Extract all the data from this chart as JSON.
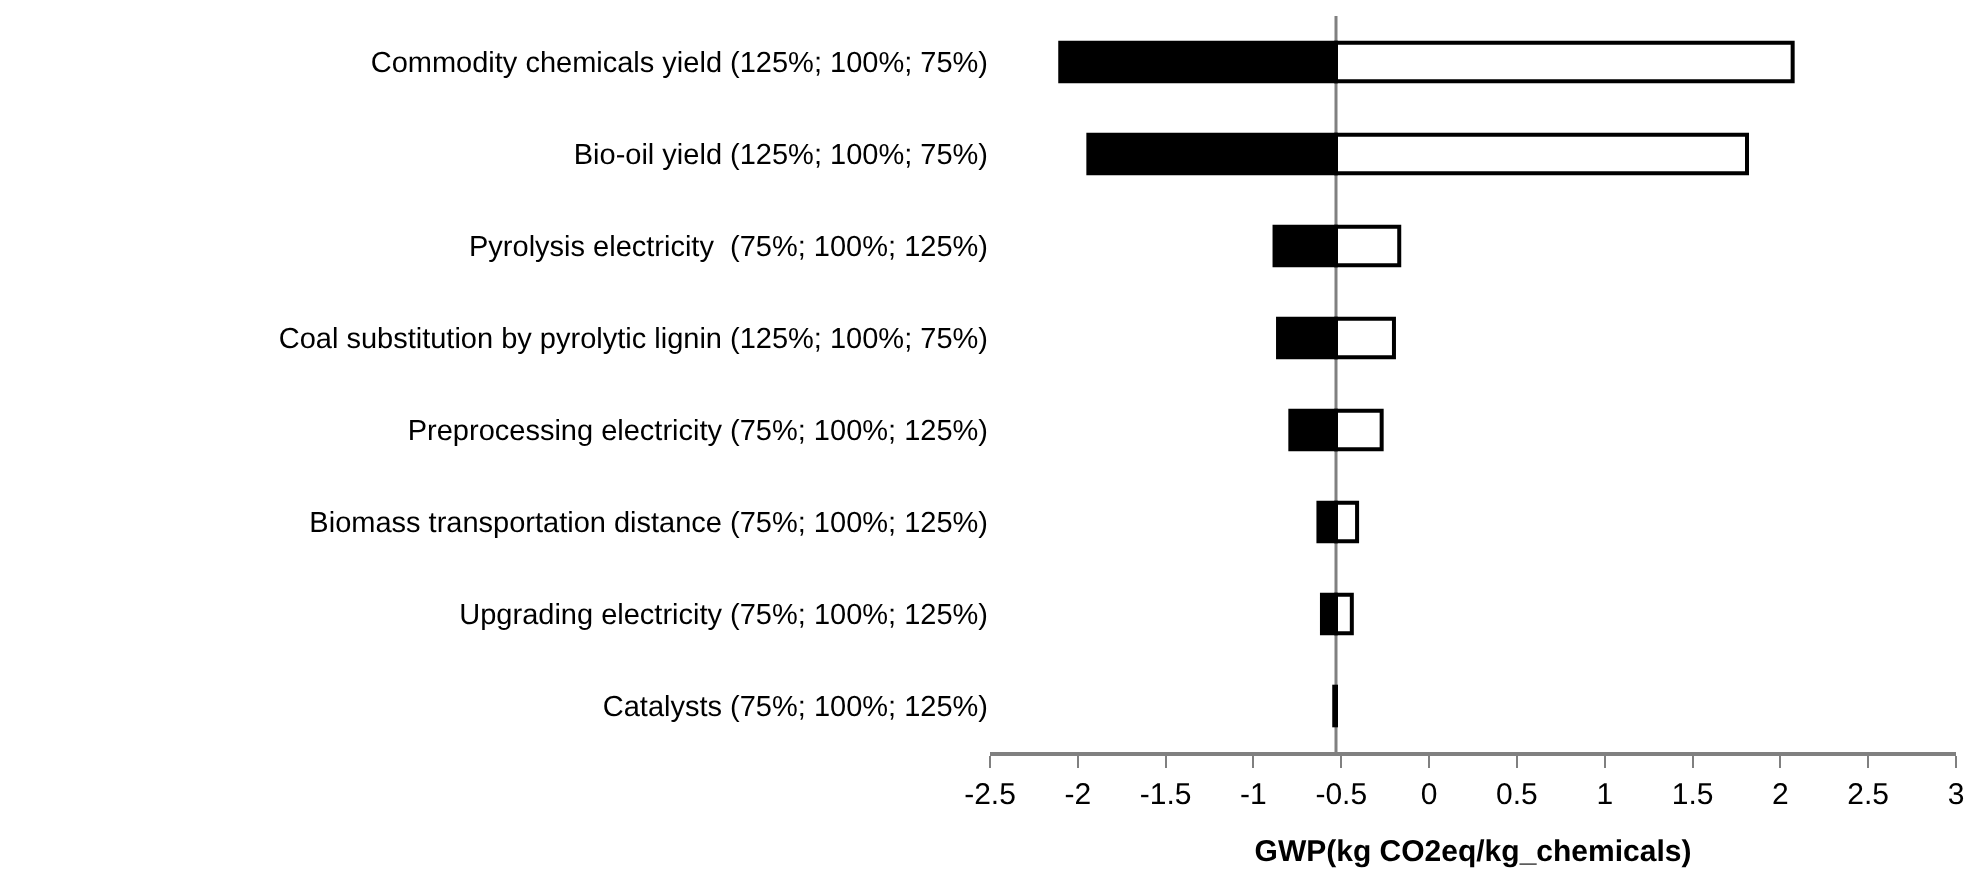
{
  "chart_data": {
    "type": "bar",
    "orientation": "horizontal",
    "xlabel": "GWP(kg CO2eq/kg_chemicals)",
    "categories": [
      "Commodity chemicals yield (125%; 100%; 75%)",
      "Bio-oil yield (125%; 100%; 75%)",
      "Pyrolysis electricity  (75%; 100%; 125%)",
      "Coal substitution by pyrolytic lignin (125%; 100%; 75%)",
      "Preprocessing electricity (75%; 100%; 125%)",
      "Biomass transportation distance (75%; 100%; 125%)",
      "Upgrading electricity (75%; 100%; 125%)",
      "Catalysts (75%; 100%; 125%)"
    ],
    "series": [
      {
        "color": "#000000",
        "base": [
          -2.1,
          -1.94,
          -0.88,
          -0.86,
          -0.79,
          -0.63,
          -0.61,
          -0.54
        ],
        "values": [
          1.57,
          1.41,
          0.35,
          0.33,
          0.26,
          0.1,
          0.08,
          0.01
        ]
      },
      {
        "color": "#ffffff",
        "base": [
          -0.53,
          -0.53,
          -0.53,
          -0.53,
          -0.53,
          -0.53,
          -0.53,
          null
        ],
        "values": [
          2.6,
          2.34,
          0.36,
          0.33,
          0.26,
          0.12,
          0.09,
          null
        ]
      }
    ],
    "ref_lines": [
      {
        "axis": "x",
        "value": -0.53,
        "color": "#808080"
      }
    ],
    "xlim": [
      -2.5,
      3
    ],
    "xticks": [
      -2.5,
      -2,
      -1.5,
      -1,
      -0.5,
      0,
      0.5,
      1,
      1.5,
      2,
      2.5,
      3
    ],
    "grid": false
  }
}
